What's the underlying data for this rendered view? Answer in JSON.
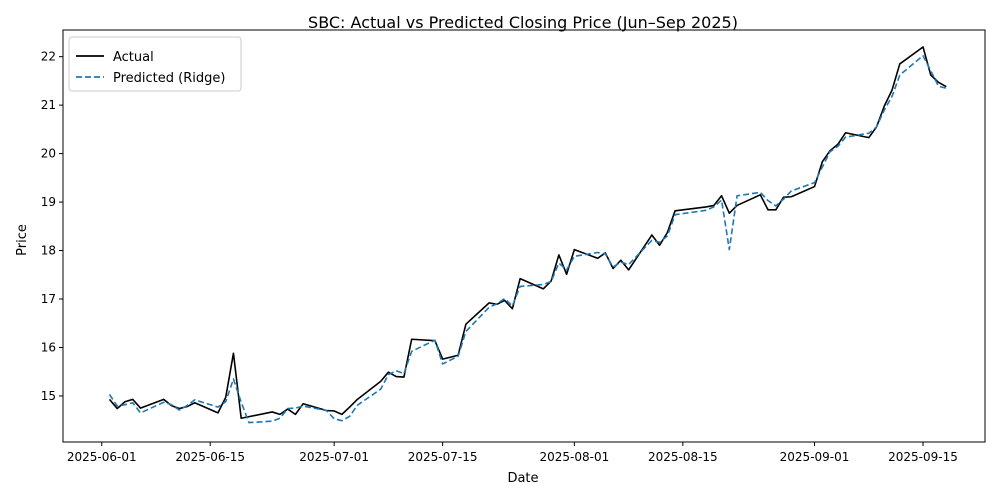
{
  "chart_data": {
    "type": "line",
    "title": "SBC: Actual vs Predicted Closing Price (Jun–Sep 2025)",
    "xlabel": "Date",
    "ylabel": "Price",
    "xlim": [
      "2025-05-27",
      "2025-09-23"
    ],
    "ylim": [
      14.05,
      22.55
    ],
    "x_ticks": [
      "2025-06-01",
      "2025-06-15",
      "2025-07-01",
      "2025-07-15",
      "2025-08-01",
      "2025-08-15",
      "2025-09-01",
      "2025-09-15"
    ],
    "y_ticks": [
      15,
      16,
      17,
      18,
      19,
      20,
      21,
      22
    ],
    "grid": false,
    "legend_position": "top-left",
    "series": [
      {
        "name": "Actual",
        "color": "#000000",
        "style": "solid",
        "points": [
          [
            "2025-06-02",
            14.93
          ],
          [
            "2025-06-03",
            14.74
          ],
          [
            "2025-06-04",
            14.88
          ],
          [
            "2025-06-05",
            14.93
          ],
          [
            "2025-06-06",
            14.75
          ],
          [
            "2025-06-09",
            14.93
          ],
          [
            "2025-06-10",
            14.8
          ],
          [
            "2025-06-11",
            14.74
          ],
          [
            "2025-06-12",
            14.78
          ],
          [
            "2025-06-13",
            14.86
          ],
          [
            "2025-06-16",
            14.65
          ],
          [
            "2025-06-17",
            14.97
          ],
          [
            "2025-06-18",
            15.88
          ],
          [
            "2025-06-19",
            14.54
          ],
          [
            "2025-06-23",
            14.67
          ],
          [
            "2025-06-24",
            14.62
          ],
          [
            "2025-06-25",
            14.73
          ],
          [
            "2025-06-26",
            14.62
          ],
          [
            "2025-06-27",
            14.84
          ],
          [
            "2025-06-30",
            14.7
          ],
          [
            "2025-07-01",
            14.69
          ],
          [
            "2025-07-02",
            14.62
          ],
          [
            "2025-07-03",
            14.77
          ],
          [
            "2025-07-04",
            14.93
          ],
          [
            "2025-07-07",
            15.3
          ],
          [
            "2025-07-08",
            15.49
          ],
          [
            "2025-07-09",
            15.4
          ],
          [
            "2025-07-10",
            15.39
          ],
          [
            "2025-07-11",
            16.17
          ],
          [
            "2025-07-14",
            16.14
          ],
          [
            "2025-07-15",
            15.76
          ],
          [
            "2025-07-17",
            15.84
          ],
          [
            "2025-07-18",
            16.48
          ],
          [
            "2025-07-21",
            16.92
          ],
          [
            "2025-07-22",
            16.89
          ],
          [
            "2025-07-23",
            16.97
          ],
          [
            "2025-07-24",
            16.8
          ],
          [
            "2025-07-25",
            17.42
          ],
          [
            "2025-07-28",
            17.21
          ],
          [
            "2025-07-29",
            17.37
          ],
          [
            "2025-07-30",
            17.91
          ],
          [
            "2025-07-31",
            17.51
          ],
          [
            "2025-08-01",
            18.02
          ],
          [
            "2025-08-04",
            17.84
          ],
          [
            "2025-08-05",
            17.95
          ],
          [
            "2025-08-06",
            17.63
          ],
          [
            "2025-08-07",
            17.8
          ],
          [
            "2025-08-08",
            17.6
          ],
          [
            "2025-08-11",
            18.32
          ],
          [
            "2025-08-12",
            18.11
          ],
          [
            "2025-08-13",
            18.37
          ],
          [
            "2025-08-14",
            18.82
          ],
          [
            "2025-08-18",
            18.9
          ],
          [
            "2025-08-19",
            18.93
          ],
          [
            "2025-08-20",
            19.13
          ],
          [
            "2025-08-21",
            18.77
          ],
          [
            "2025-08-22",
            18.93
          ],
          [
            "2025-08-25",
            19.15
          ],
          [
            "2025-08-26",
            18.84
          ],
          [
            "2025-08-27",
            18.84
          ],
          [
            "2025-08-28",
            19.1
          ],
          [
            "2025-08-29",
            19.11
          ],
          [
            "2025-09-01",
            19.32
          ],
          [
            "2025-09-02",
            19.83
          ],
          [
            "2025-09-03",
            20.06
          ],
          [
            "2025-09-04",
            20.19
          ],
          [
            "2025-09-05",
            20.43
          ],
          [
            "2025-09-08",
            20.33
          ],
          [
            "2025-09-09",
            20.55
          ],
          [
            "2025-09-10",
            20.98
          ],
          [
            "2025-09-11",
            21.31
          ],
          [
            "2025-09-12",
            21.85
          ],
          [
            "2025-09-15",
            22.2
          ],
          [
            "2025-09-16",
            21.62
          ],
          [
            "2025-09-17",
            21.47
          ],
          [
            "2025-09-18",
            21.38
          ]
        ]
      },
      {
        "name": "Predicted (Ridge)",
        "color": "#1f77b4",
        "style": "dashed",
        "points": [
          [
            "2025-06-02",
            15.03
          ],
          [
            "2025-06-03",
            14.79
          ],
          [
            "2025-06-04",
            14.82
          ],
          [
            "2025-06-05",
            14.86
          ],
          [
            "2025-06-06",
            14.65
          ],
          [
            "2025-06-09",
            14.87
          ],
          [
            "2025-06-10",
            14.82
          ],
          [
            "2025-06-11",
            14.71
          ],
          [
            "2025-06-12",
            14.8
          ],
          [
            "2025-06-13",
            14.92
          ],
          [
            "2025-06-16",
            14.77
          ],
          [
            "2025-06-17",
            14.88
          ],
          [
            "2025-06-18",
            15.35
          ],
          [
            "2025-06-19",
            14.87
          ],
          [
            "2025-06-20",
            14.45
          ],
          [
            "2025-06-23",
            14.48
          ],
          [
            "2025-06-24",
            14.54
          ],
          [
            "2025-06-25",
            14.74
          ],
          [
            "2025-06-26",
            14.75
          ],
          [
            "2025-06-27",
            14.79
          ],
          [
            "2025-06-30",
            14.7
          ],
          [
            "2025-07-01",
            14.53
          ],
          [
            "2025-07-02",
            14.49
          ],
          [
            "2025-07-03",
            14.58
          ],
          [
            "2025-07-04",
            14.81
          ],
          [
            "2025-07-07",
            15.14
          ],
          [
            "2025-07-08",
            15.44
          ],
          [
            "2025-07-09",
            15.52
          ],
          [
            "2025-07-10",
            15.46
          ],
          [
            "2025-07-11",
            15.92
          ],
          [
            "2025-07-14",
            16.15
          ],
          [
            "2025-07-15",
            15.66
          ],
          [
            "2025-07-17",
            15.82
          ],
          [
            "2025-07-18",
            16.33
          ],
          [
            "2025-07-21",
            16.83
          ],
          [
            "2025-07-22",
            16.9
          ],
          [
            "2025-07-23",
            17.01
          ],
          [
            "2025-07-24",
            16.86
          ],
          [
            "2025-07-25",
            17.26
          ],
          [
            "2025-07-28",
            17.3
          ],
          [
            "2025-07-29",
            17.36
          ],
          [
            "2025-07-30",
            17.74
          ],
          [
            "2025-07-31",
            17.6
          ],
          [
            "2025-08-01",
            17.88
          ],
          [
            "2025-08-04",
            17.96
          ],
          [
            "2025-08-05",
            17.93
          ],
          [
            "2025-08-06",
            17.66
          ],
          [
            "2025-08-07",
            17.76
          ],
          [
            "2025-08-08",
            17.71
          ],
          [
            "2025-08-11",
            18.21
          ],
          [
            "2025-08-12",
            18.17
          ],
          [
            "2025-08-13",
            18.3
          ],
          [
            "2025-08-14",
            18.74
          ],
          [
            "2025-08-18",
            18.83
          ],
          [
            "2025-08-19",
            18.9
          ],
          [
            "2025-08-20",
            19.04
          ],
          [
            "2025-08-21",
            18.02
          ],
          [
            "2025-08-22",
            19.13
          ],
          [
            "2025-08-25",
            19.2
          ],
          [
            "2025-08-26",
            19.03
          ],
          [
            "2025-08-27",
            18.92
          ],
          [
            "2025-08-28",
            19.06
          ],
          [
            "2025-08-29",
            19.23
          ],
          [
            "2025-09-01",
            19.4
          ],
          [
            "2025-09-02",
            19.72
          ],
          [
            "2025-09-03",
            20.04
          ],
          [
            "2025-09-04",
            20.15
          ],
          [
            "2025-09-05",
            20.34
          ],
          [
            "2025-09-08",
            20.42
          ],
          [
            "2025-09-09",
            20.55
          ],
          [
            "2025-09-10",
            20.9
          ],
          [
            "2025-09-11",
            21.18
          ],
          [
            "2025-09-12",
            21.62
          ],
          [
            "2025-09-15",
            22.02
          ],
          [
            "2025-09-16",
            21.71
          ],
          [
            "2025-09-17",
            21.39
          ],
          [
            "2025-09-18",
            21.35
          ]
        ]
      }
    ]
  }
}
